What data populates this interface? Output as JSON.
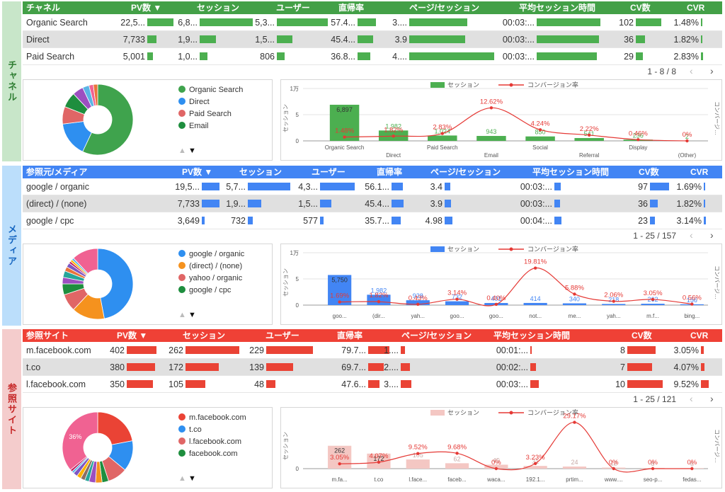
{
  "sections": [
    {
      "label": "チャネル",
      "theme": {
        "header": "#43a047",
        "bar": "#4caf50",
        "side": "#c8e6c9",
        "side_text": "#2e7d32"
      },
      "table": {
        "headers": [
          "チャネル",
          "PV数 ▼",
          "セッション",
          "ユーザー",
          "直帰率",
          "ページ/セッション",
          "平均セッション時間",
          "CV数",
          "CVR"
        ],
        "rows": [
          {
            "cells": [
              "Organic Search",
              "22,5...",
              "6,8...",
              "5,3...",
              "57.4...",
              "3....",
              "00:03:...",
              "102",
              "1.48%"
            ],
            "bars": [
              null,
              100,
              100,
              100,
              65,
              68,
              100,
              100,
              7
            ]
          },
          {
            "cells": [
              "Direct",
              "7,733",
              "1,9...",
              "1,5...",
              "45.4...",
              "3.9",
              "00:03:...",
              "36",
              "1.82%"
            ],
            "bars": [
              null,
              34,
              30,
              30,
              55,
              66,
              98,
              35,
              7
            ]
          },
          {
            "cells": [
              "Paid Search",
              "5,001",
              "1,0...",
              "806",
              "36.8...",
              "4....",
              "00:03:...",
              "29",
              "2.83%"
            ],
            "bars": [
              null,
              22,
              15,
              15,
              45,
              100,
              94,
              28,
              10
            ]
          }
        ],
        "pagination": "1 - 8 / 8"
      },
      "donut": {
        "values": [
          57,
          16,
          8,
          7,
          5,
          3,
          2,
          2
        ],
        "colors": [
          "#3fa34d",
          "#2e8ff0",
          "#e06666",
          "#1e8e3e",
          "#9c4fc0",
          "#5ab4e5",
          "#f06292",
          "#e8743b"
        ],
        "value_labels": [
          null,
          null,
          null,
          null,
          null,
          null,
          null,
          null
        ],
        "legend": [
          {
            "name": "Organic Search",
            "color": "#3fa34d"
          },
          {
            "name": "Direct",
            "color": "#2e8ff0"
          },
          {
            "name": "Paid Search",
            "color": "#e06666"
          },
          {
            "name": "Email",
            "color": "#1e8e3e"
          }
        ]
      },
      "combo": {
        "type": "bar-line",
        "y_title": "セッション",
        "y2_title": "コンバージ…",
        "categories": [
          "Organic Search",
          "Direct",
          "Paid Search",
          "Email",
          "Social",
          "Referral",
          "Display",
          "(Other)"
        ],
        "ylim": [
          0,
          10000
        ],
        "yticks": [
          0,
          {
            "value": 5000,
            "label": "5"
          },
          {
            "value": 10000,
            "label": "1万"
          }
        ],
        "y2lim": [
          0,
          20
        ],
        "series": [
          {
            "name": "セッション",
            "color": "#4caf50",
            "values": [
              6897,
              1982,
              1024,
              943,
              850,
              541,
              236,
              2
            ],
            "value_labels": [
              "6,897",
              "1,982",
              "1,024",
              "943",
              "850",
              "541",
              "236",
              "2"
            ]
          },
          {
            "name": "コンバージョン率",
            "color": "#e53935",
            "axis": "y2",
            "values": [
              1.48,
              1.82,
              2.83,
              12.62,
              4.24,
              2.22,
              0.46,
              0
            ],
            "value_labels": [
              "1.48%",
              "1.82%",
              "2.83%",
              "12.62%",
              "4.24%",
              "2.22%",
              "0.46%",
              "0%"
            ]
          }
        ]
      }
    },
    {
      "label": "メディア",
      "theme": {
        "header": "#4285f4",
        "bar": "#4285f4",
        "side": "#bbdefb",
        "side_text": "#1565c0"
      },
      "table": {
        "headers": [
          "参照元/メディア",
          "PV数 ▼",
          "セッション",
          "ユーザー",
          "直帰率",
          "ページ/セッション",
          "平均セッション時間",
          "CV数",
          "CVR"
        ],
        "rows": [
          {
            "cells": [
              "google / organic",
              "19,5...",
              "5,7...",
              "4,3...",
              "56.1...",
              "3.4",
              "00:03:...",
              "97",
              "1.69%"
            ],
            "bars": [
              null,
              90,
              96,
              95,
              90,
              70,
              90,
              95,
              20
            ]
          },
          {
            "cells": [
              "(direct) / (none)",
              "7,733",
              "1,9...",
              "1,5...",
              "45.4...",
              "3.9",
              "00:03:...",
              "36",
              "1.82%"
            ],
            "bars": [
              null,
              88,
              30,
              30,
              95,
              75,
              80,
              40,
              20
            ]
          },
          {
            "cells": [
              "google / cpc",
              "3,649",
              "732",
              "577",
              "35.7...",
              "4.98",
              "00:04:...",
              "23",
              "3.14%"
            ],
            "bars": [
              null,
              15,
              12,
              10,
              70,
              95,
              100,
              25,
              25
            ]
          }
        ],
        "pagination": "1 - 25 / 157"
      },
      "donut": {
        "values": [
          47,
          15,
          8,
          5,
          3,
          3,
          2,
          2,
          1,
          1,
          1,
          12
        ],
        "colors": [
          "#2e8ff0",
          "#f5921e",
          "#e06666",
          "#1e8e3e",
          "#9c4fc0",
          "#26a69a",
          "#e8743b",
          "#7e57c2",
          "#c2185b",
          "#ffb300",
          "#5ab4e5",
          "#f06292"
        ],
        "value_labels": [
          null,
          null,
          null,
          null,
          null,
          null,
          null,
          null,
          null,
          null,
          null,
          null
        ],
        "legend": [
          {
            "name": "google / organic",
            "color": "#2e8ff0"
          },
          {
            "name": "(direct) / (none)",
            "color": "#f5921e"
          },
          {
            "name": "yahoo / organic",
            "color": "#e06666"
          },
          {
            "name": "google / cpc",
            "color": "#1e8e3e"
          }
        ]
      },
      "combo": {
        "type": "bar-line",
        "y_title": "セッション",
        "y2_title": "コンバージ…",
        "categories": [
          "goo...",
          "(dir...",
          "yah...",
          "goo...",
          "goo...",
          "not...",
          "me...",
          "yah...",
          "m.f...",
          "bing..."
        ],
        "ylim": [
          0,
          10000
        ],
        "yticks": [
          0,
          {
            "value": 5000,
            "label": "5"
          },
          {
            "value": 10000,
            "label": "1万"
          }
        ],
        "y2lim": [
          0,
          28
        ],
        "series": [
          {
            "name": "セッション",
            "color": "#4285f4",
            "values": [
              5750,
              1982,
              928,
              732,
              401,
              414,
              340,
              218,
              262,
              156
            ],
            "value_labels": [
              "5,750",
              "1,982",
              "928",
              "732",
              "401",
              "414",
              "340",
              "218",
              "262",
              "156"
            ]
          },
          {
            "name": "コンバージョン率",
            "color": "#e53935",
            "axis": "y2",
            "values": [
              1.69,
              1.82,
              0.43,
              3.14,
              0.4,
              19.81,
              5.88,
              2.06,
              3.05,
              0.56
            ],
            "value_labels": [
              "1.69%",
              "1.82%",
              "0.43%",
              "3.14%",
              "0.40%",
              "19.81%",
              "5.88%",
              "2.06%",
              "3.05%",
              "0.56%"
            ]
          }
        ]
      }
    },
    {
      "label": "参照サイト",
      "theme": {
        "header": "#ef4136",
        "bar": "#ea4335",
        "side": "#f4cccc",
        "side_text": "#c62828"
      },
      "table": {
        "headers": [
          "参照サイト",
          "PV数 ▼",
          "セッション",
          "ユーザー",
          "直帰率",
          "ページ/セッション",
          "平均セッション時間",
          "CV数",
          "CVR"
        ],
        "rows": [
          {
            "cells": [
              "m.facebook.com",
              "402",
              "262",
              "229",
              "79.7...",
              "1....",
              "00:01:...",
              "8",
              "3.05%"
            ],
            "bars": [
              null,
              100,
              100,
              100,
              95,
              20,
              10,
              80,
              30
            ]
          },
          {
            "cells": [
              "t.co",
              "380",
              "172",
              "139",
              "69.7...",
              "2....",
              "00:02:...",
              "7",
              "4.07%"
            ],
            "bars": [
              null,
              95,
              62,
              58,
              70,
              45,
              45,
              70,
              40
            ]
          },
          {
            "cells": [
              "l.facebook.com",
              "350",
              "105",
              "48",
              "47.6...",
              "3....",
              "00:03:...",
              "10",
              "9.52%"
            ],
            "bars": [
              null,
              87,
              37,
              20,
              50,
              55,
              65,
              100,
              95
            ]
          }
        ],
        "pagination": "1 - 25 / 121"
      },
      "donut": {
        "values": [
          22,
          14,
          9,
          3,
          3,
          3,
          2,
          2,
          2,
          2,
          1,
          1,
          36
        ],
        "colors": [
          "#ea4335",
          "#2e8ff0",
          "#e06666",
          "#1e8e3e",
          "#f5921e",
          "#9c4fc0",
          "#26a69a",
          "#8d6e63",
          "#ffb300",
          "#7e57c2",
          "#5ab4e5",
          "#c2185b",
          "#f06292"
        ],
        "value_labels": [
          null,
          null,
          null,
          null,
          null,
          null,
          null,
          null,
          null,
          null,
          null,
          null,
          "36%"
        ],
        "legend": [
          {
            "name": "m.facebook.com",
            "color": "#ea4335"
          },
          {
            "name": "t.co",
            "color": "#2e8ff0"
          },
          {
            "name": "l.facebook.com",
            "color": "#e06666"
          },
          {
            "name": "facebook.com",
            "color": "#1e8e3e"
          }
        ]
      },
      "combo": {
        "type": "bar-line",
        "y_title": "セッション",
        "y2_title": "コンバージ…",
        "categories": [
          "m.fa...",
          "t.co",
          "l.face...",
          "faceb...",
          "waca...",
          "192.1...",
          "prtim...",
          "www....",
          "seo-p...",
          "fedas..."
        ],
        "ylim": [
          0,
          600
        ],
        "yticks": [
          0
        ],
        "y2lim": [
          0,
          33
        ],
        "series": [
          {
            "name": "セッション",
            "color": "#f4c7c3",
            "values": [
              262,
              172,
              105,
              62,
              45,
              31,
              24,
              12,
              8,
              6
            ],
            "value_labels": [
              "262",
              "172",
              "105",
              "62",
              "45",
              "31",
              "24",
              "12",
              "8",
              "6"
            ]
          },
          {
            "name": "コンバージョン率",
            "color": "#e53935",
            "axis": "y2",
            "values": [
              3.05,
              4.07,
              9.52,
              9.68,
              0,
              3.23,
              29.17,
              0,
              0,
              0
            ],
            "value_labels": [
              "3.05%",
              "4.07%",
              "9.52%",
              "9.68%",
              "0%",
              "3.23%",
              "29.17%",
              "0%",
              "0%",
              "0%"
            ]
          }
        ]
      }
    }
  ]
}
